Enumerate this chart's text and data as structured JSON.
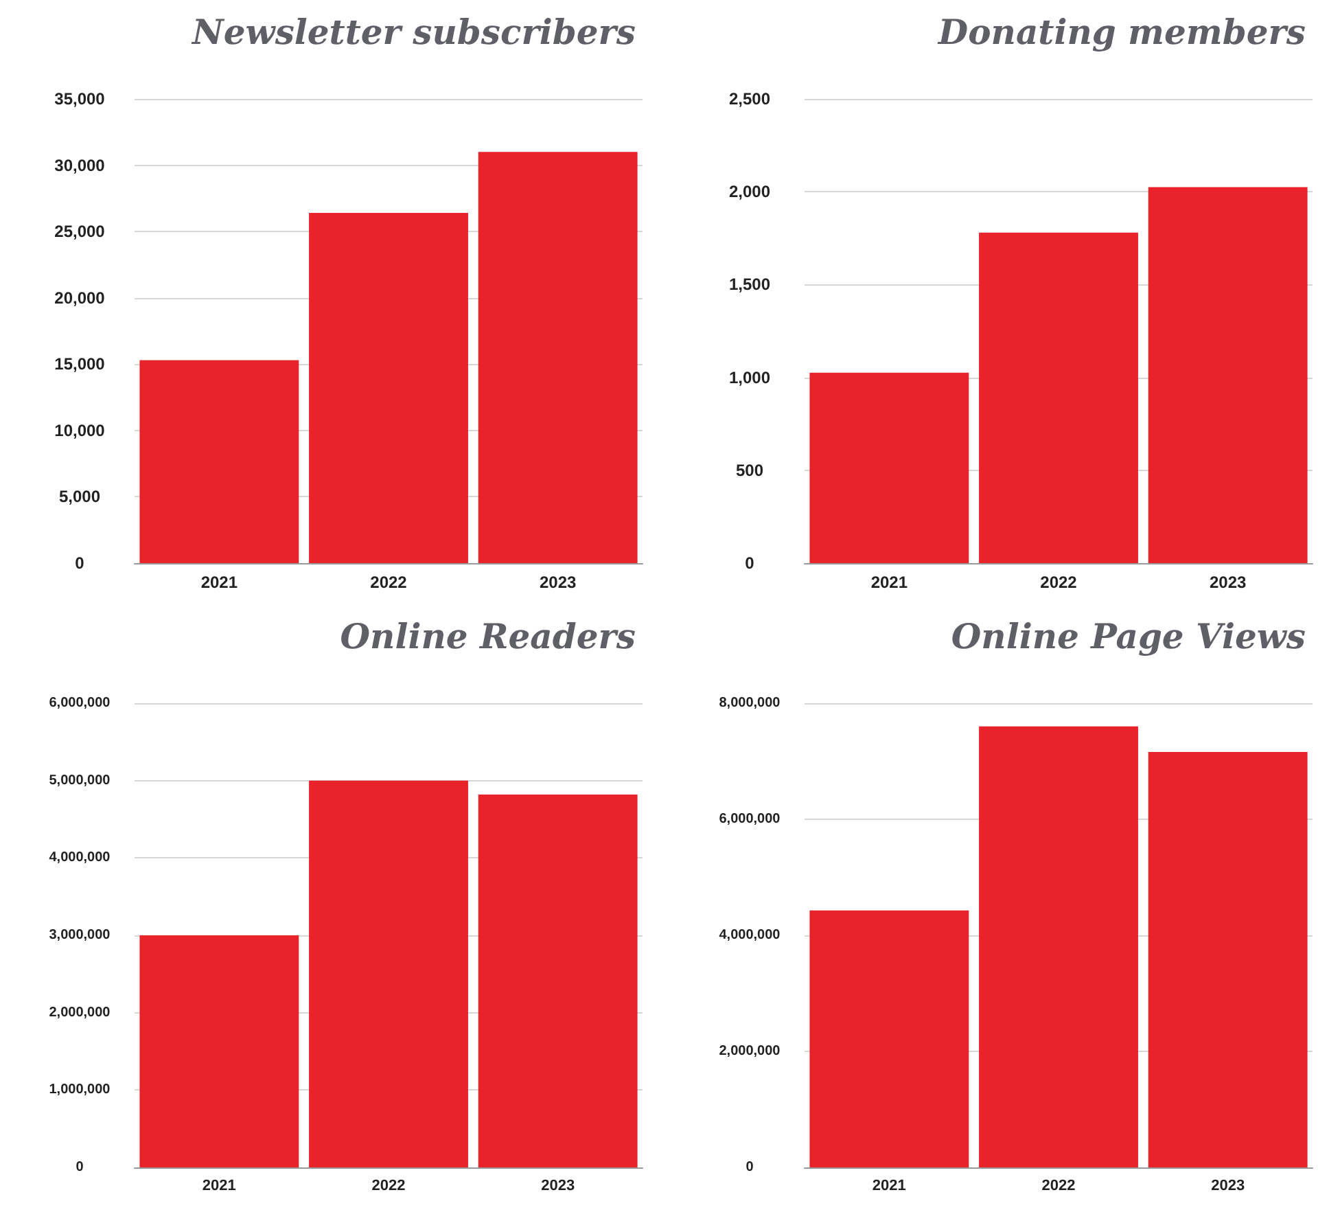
{
  "chart_data": [
    {
      "type": "bar",
      "title": "Newsletter subscribers",
      "categories": [
        "2021",
        "2022",
        "2023"
      ],
      "values": [
        15300,
        26400,
        31000
      ],
      "color": "#e8232a",
      "ylim": [
        0,
        35000
      ],
      "yticks": [
        {
          "value": 0,
          "label": "0"
        },
        {
          "value": 5000,
          "label": "5,000"
        },
        {
          "value": 10000,
          "label": "10,000"
        },
        {
          "value": 15000,
          "label": "15,000"
        },
        {
          "value": 20000,
          "label": "20,000"
        },
        {
          "value": 25000,
          "label": "25,000"
        },
        {
          "value": 30000,
          "label": "30,000"
        },
        {
          "value": 35000,
          "label": "35,000"
        }
      ],
      "grid": "y"
    },
    {
      "type": "bar",
      "title": "Donating members",
      "categories": [
        "2021",
        "2022",
        "2023"
      ],
      "values": [
        1025,
        1780,
        2025
      ],
      "color": "#e8232a",
      "ylim": [
        0,
        2500
      ],
      "yticks": [
        {
          "value": 0,
          "label": "0"
        },
        500,
        {
          "value": 1000,
          "label": "1,000"
        },
        {
          "value": 1500,
          "label": "1,500"
        },
        {
          "value": 2000,
          "label": "2,000"
        },
        {
          "value": 2500,
          "label": "2,500"
        }
      ],
      "grid": "y"
    },
    {
      "type": "bar",
      "title": "Online Readers",
      "categories": [
        "2021",
        "2022",
        "2023"
      ],
      "values": [
        3000000,
        5000000,
        4820000
      ],
      "color": "#e8232a",
      "ylim": [
        0,
        6000000
      ],
      "yticks": [
        {
          "value": 0,
          "label": "0"
        },
        {
          "value": 1000000,
          "label": "1,000,000"
        },
        {
          "value": 2000000,
          "label": "2,000,000"
        },
        {
          "value": 3000000,
          "label": "3,000,000"
        },
        {
          "value": 4000000,
          "label": "4,000,000"
        },
        {
          "value": 5000000,
          "label": "5,000,000"
        },
        {
          "value": 6000000,
          "label": "6,000,000"
        }
      ],
      "grid": "y"
    },
    {
      "type": "bar",
      "title": "Online Page Views",
      "categories": [
        "2021",
        "2022",
        "2023"
      ],
      "values": [
        4430000,
        7600000,
        7160000
      ],
      "color": "#e8232a",
      "ylim": [
        0,
        8000000
      ],
      "yticks": [
        {
          "value": 0,
          "label": "0"
        },
        {
          "value": 2000000,
          "label": "2,000,000"
        },
        {
          "value": 4000000,
          "label": "4,000,000"
        },
        {
          "value": 6000000,
          "label": "6,000,000"
        },
        {
          "value": 8000000,
          "label": "8,000,000"
        }
      ],
      "grid": "y"
    }
  ]
}
